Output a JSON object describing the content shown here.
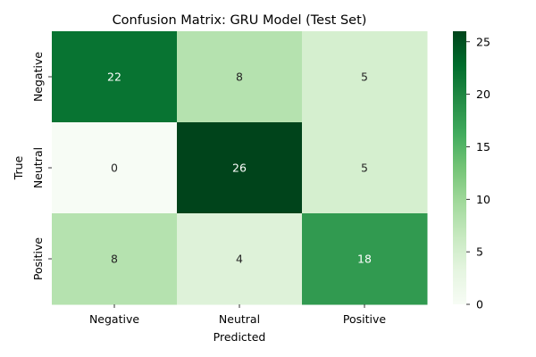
{
  "chart_data": {
    "type": "heatmap",
    "title": "Confusion Matrix: GRU Model (Test Set)",
    "xlabel": "Predicted",
    "ylabel": "True",
    "x_categories": [
      "Negative",
      "Neutral",
      "Positive"
    ],
    "y_categories": [
      "Negative",
      "Neutral",
      "Positive"
    ],
    "values": [
      [
        22,
        8,
        5
      ],
      [
        0,
        26,
        5
      ],
      [
        8,
        4,
        18
      ]
    ],
    "colorscale": "Greens",
    "colorbar": {
      "range": [
        0,
        26
      ],
      "ticks": [
        0,
        5,
        10,
        15,
        20,
        25
      ],
      "tick_labels": [
        "0",
        "5",
        "10",
        "15",
        "20",
        "25"
      ]
    }
  }
}
